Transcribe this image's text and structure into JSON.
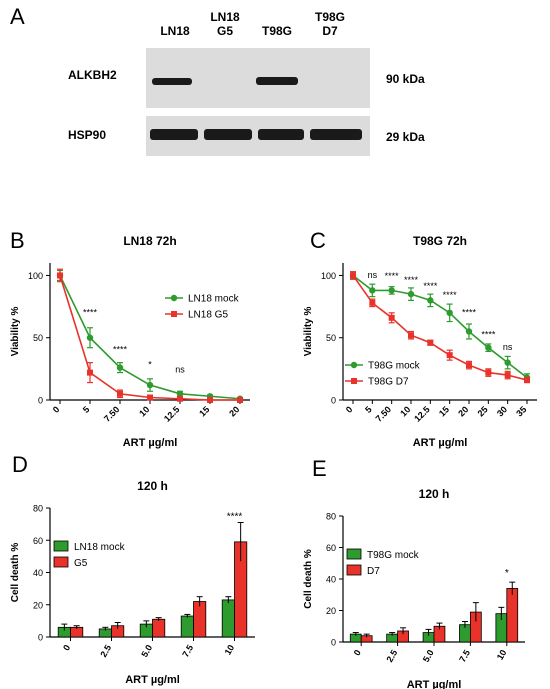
{
  "panel_a": {
    "letter": "A",
    "lanes": [
      {
        "line1": "LN18",
        "line2": ""
      },
      {
        "line1": "LN18",
        "line2": "G5"
      },
      {
        "line1": "T98G",
        "line2": ""
      },
      {
        "line1": "T98G",
        "line2": "D7"
      }
    ],
    "rows": [
      {
        "label": "ALKBH2",
        "kda": "90 kDa",
        "band_intensity": [
          1,
          0,
          1,
          0
        ]
      },
      {
        "label": "HSP90",
        "kda": "29 kDa",
        "band_intensity": [
          1,
          1,
          1,
          1
        ]
      }
    ]
  },
  "chart_data": [
    {
      "panel": "B",
      "type": "line",
      "title": "LN18 72h",
      "xlabel": "ART µg/ml",
      "ylabel": "Viability %",
      "categories": [
        "0",
        "5",
        "7.50",
        "10",
        "12.5",
        "15",
        "20"
      ],
      "ylim": [
        0,
        110
      ],
      "yticks": [
        "0",
        "50",
        "100"
      ],
      "legend": "right",
      "series": [
        {
          "name": "LN18 mock",
          "color": "#2e9b2e",
          "values": [
            100,
            50,
            26,
            12,
            5,
            3,
            1
          ],
          "err": [
            4,
            8,
            4,
            5,
            2,
            1,
            1
          ]
        },
        {
          "name": "LN18 G5",
          "color": "#e8322a",
          "values": [
            100,
            22,
            5,
            2,
            1,
            0,
            0
          ],
          "err": [
            5,
            8,
            3,
            1,
            1,
            0,
            0
          ]
        }
      ],
      "annotations": [
        {
          "x": "5",
          "text": "****",
          "y": 68
        },
        {
          "x": "7.50",
          "text": "****",
          "y": 38
        },
        {
          "x": "10",
          "text": "*",
          "y": 26
        },
        {
          "x": "12.5",
          "text": "ns",
          "y": 22
        }
      ]
    },
    {
      "panel": "C",
      "type": "line",
      "title": "T98G 72h",
      "xlabel": "ART µg/ml",
      "ylabel": "Viability %",
      "categories": [
        "0",
        "5",
        "7.50",
        "10",
        "12.5",
        "15",
        "20",
        "25",
        "30",
        "35"
      ],
      "ylim": [
        0,
        110
      ],
      "yticks": [
        "0",
        "50",
        "100"
      ],
      "legend": "bottom-left",
      "series": [
        {
          "name": "T98G mock",
          "color": "#2e9b2e",
          "values": [
            100,
            88,
            88,
            85,
            80,
            70,
            55,
            42,
            30,
            18
          ],
          "err": [
            3,
            5,
            3,
            5,
            5,
            7,
            6,
            3,
            5,
            3
          ]
        },
        {
          "name": "T98G D7",
          "color": "#e8322a",
          "values": [
            100,
            78,
            66,
            52,
            46,
            36,
            28,
            22,
            20,
            16
          ],
          "err": [
            3,
            3,
            4,
            3,
            2,
            4,
            3,
            3,
            3,
            2
          ]
        }
      ],
      "annotations": [
        {
          "x": "5",
          "text": "ns",
          "y": 98
        },
        {
          "x": "7.50",
          "text": "****",
          "y": 97
        },
        {
          "x": "10",
          "text": "****",
          "y": 94
        },
        {
          "x": "12.5",
          "text": "****",
          "y": 89
        },
        {
          "x": "15",
          "text": "****",
          "y": 82
        },
        {
          "x": "20",
          "text": "****",
          "y": 68
        },
        {
          "x": "25",
          "text": "****",
          "y": 50
        },
        {
          "x": "30",
          "text": "ns",
          "y": 40
        }
      ]
    },
    {
      "panel": "D",
      "type": "bar",
      "title": "120 h",
      "xlabel": "ART µg/ml",
      "ylabel": "Cell death %",
      "categories": [
        "0",
        "2.5",
        "5.0",
        "7.5",
        "10"
      ],
      "ylim": [
        0,
        80
      ],
      "yticks": [
        "0",
        "20",
        "40",
        "60",
        "80"
      ],
      "legend": "left",
      "series": [
        {
          "name": "LN18 mock",
          "color": "#2e9b2e",
          "values": [
            6,
            5,
            8,
            13,
            23
          ],
          "err": [
            2,
            1,
            2,
            1,
            2
          ]
        },
        {
          "name": "G5",
          "color": "#e8322a",
          "values": [
            6,
            7,
            11,
            22,
            59
          ],
          "err": [
            1,
            2,
            1,
            3,
            12
          ]
        }
      ],
      "annotations": [
        {
          "x": "10",
          "text": "****",
          "y": 73
        }
      ]
    },
    {
      "panel": "E",
      "type": "bar",
      "title": "120 h",
      "xlabel": "ART µg/ml",
      "ylabel": "Cell death %",
      "categories": [
        "0",
        "2.5",
        "5.0",
        "7.5",
        "10"
      ],
      "ylim": [
        0,
        80
      ],
      "yticks": [
        "0",
        "20",
        "40",
        "60",
        "80"
      ],
      "legend": "left",
      "series": [
        {
          "name": "T98G mock",
          "color": "#2e9b2e",
          "values": [
            5,
            5,
            6,
            11,
            18
          ],
          "err": [
            1,
            1,
            2,
            2,
            4
          ]
        },
        {
          "name": "D7",
          "color": "#e8322a",
          "values": [
            4,
            7,
            10,
            19,
            34
          ],
          "err": [
            1,
            2,
            2,
            6,
            4
          ]
        }
      ],
      "annotations": [
        {
          "x": "10",
          "text": "*",
          "y": 42
        }
      ]
    }
  ]
}
